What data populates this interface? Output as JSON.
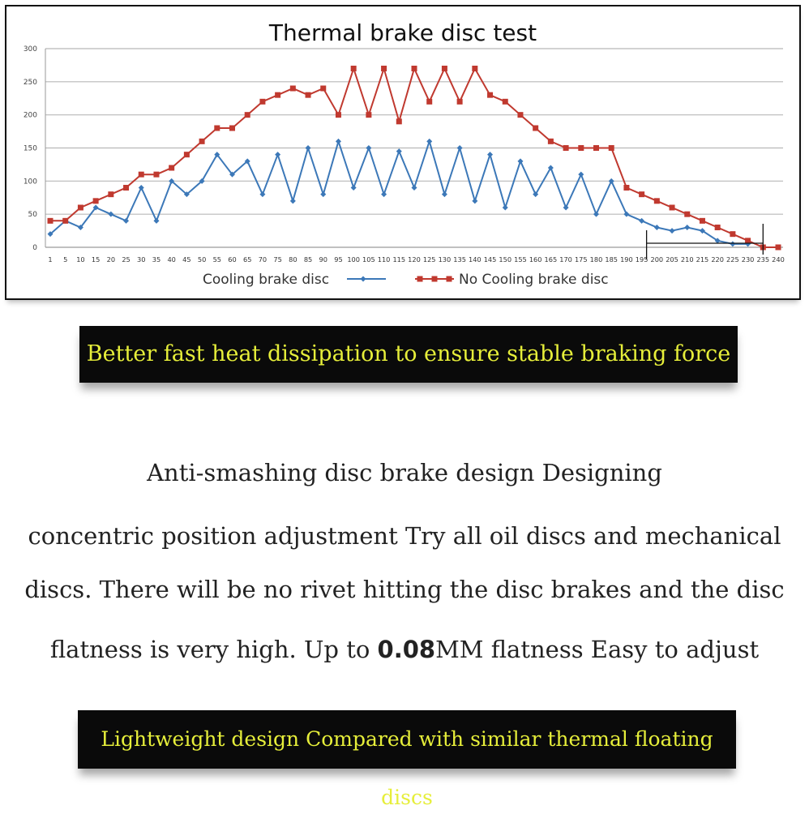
{
  "chart_data": {
    "type": "line",
    "title": "Thermal brake disc test",
    "xlabel": "",
    "ylabel": "",
    "ylim": [
      0,
      300
    ],
    "yticks": [
      0,
      50,
      100,
      150,
      200,
      250,
      300
    ],
    "x": [
      1,
      5,
      10,
      15,
      20,
      25,
      30,
      35,
      40,
      45,
      50,
      55,
      60,
      65,
      70,
      75,
      80,
      85,
      90,
      95,
      100,
      105,
      110,
      115,
      120,
      125,
      130,
      135,
      140,
      145,
      150,
      155,
      160,
      165,
      170,
      175,
      180,
      185,
      190,
      195,
      200,
      205,
      210,
      215,
      220,
      225,
      230,
      235,
      240
    ],
    "grid": true,
    "legend": "bottom",
    "series": [
      {
        "name": "Cooling brake disc",
        "color": "#3c78b8",
        "marker": "diamond",
        "values": [
          20,
          40,
          30,
          60,
          50,
          40,
          90,
          40,
          100,
          80,
          100,
          140,
          110,
          130,
          80,
          140,
          70,
          150,
          80,
          160,
          90,
          150,
          80,
          145,
          90,
          160,
          80,
          150,
          70,
          140,
          60,
          130,
          80,
          120,
          60,
          110,
          50,
          100,
          50,
          40,
          30,
          25,
          30,
          25,
          10,
          5,
          5,
          null,
          null
        ]
      },
      {
        "name": "No Cooling brake disc",
        "color": "#c0392f",
        "marker": "square",
        "values": [
          40,
          40,
          60,
          70,
          80,
          90,
          110,
          110,
          120,
          140,
          160,
          180,
          180,
          200,
          220,
          230,
          240,
          230,
          240,
          200,
          270,
          200,
          270,
          190,
          270,
          220,
          270,
          220,
          270,
          230,
          220,
          200,
          180,
          160,
          150,
          150,
          150,
          150,
          90,
          80,
          70,
          60,
          50,
          40,
          30,
          20,
          10,
          0,
          0
        ]
      }
    ],
    "annotations": [
      {
        "type": "bracket",
        "x_from": 195,
        "x_to": 235
      }
    ]
  },
  "banner_top": "Better fast heat dissipation to ensure stable braking force",
  "description": {
    "line1": "Anti-smashing disc brake design Designing",
    "line2": "concentric position adjustment Try all oil discs and mechanical",
    "line3": "discs. There will be no rivet hitting the disc brakes and the disc",
    "line4_a": "flatness is very high. Up to ",
    "line4_b": "0.08",
    "line4_c": "MM flatness Easy to adjust"
  },
  "banner_bottom": "Lightweight design Compared with similar thermal floating discs"
}
